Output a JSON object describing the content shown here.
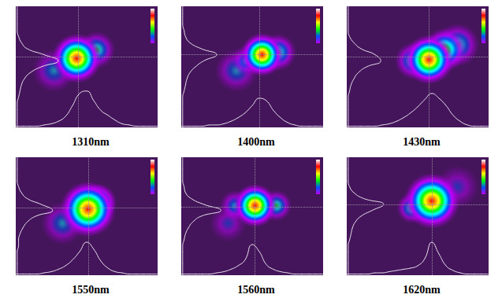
{
  "chart_data": [
    {
      "type": "scatter",
      "title": "1310nm",
      "xlim": [
        0,
        100
      ],
      "ylim": [
        0,
        100
      ],
      "tick_labels": false,
      "crosshair": {
        "x": 44,
        "y": 58
      },
      "spots": [
        {
          "x": 27,
          "y": 47,
          "width": 14,
          "intensity": 0.12
        },
        {
          "x": 57,
          "y": 64,
          "width": 12,
          "intensity": 0.35
        },
        {
          "x": 43,
          "y": 57,
          "width": 16,
          "intensity": 1.0
        }
      ],
      "profile_positions": [
        0,
        5,
        10,
        15,
        20,
        25,
        30,
        35,
        40,
        45,
        50,
        55,
        60,
        65,
        70,
        75,
        80,
        85,
        90,
        95,
        100
      ],
      "x_profile": [
        1,
        1,
        1,
        1,
        2,
        3,
        5,
        9,
        18,
        28,
        30,
        22,
        14,
        10,
        6,
        3,
        2,
        1,
        1,
        1,
        1
      ],
      "y_profile": [
        1,
        1,
        1,
        1,
        1,
        2,
        3,
        4,
        6,
        10,
        18,
        30,
        20,
        8,
        4,
        2,
        1,
        1,
        1,
        1,
        1
      ]
    },
    {
      "type": "scatter",
      "title": "1400nm",
      "xlim": [
        0,
        100
      ],
      "ylim": [
        0,
        100
      ],
      "tick_labels": false,
      "crosshair": {
        "x": 55,
        "y": 60
      },
      "spots": [
        {
          "x": 39,
          "y": 47,
          "width": 14,
          "intensity": 0.12
        },
        {
          "x": 46,
          "y": 55,
          "width": 10,
          "intensity": 0.3
        },
        {
          "x": 68,
          "y": 62,
          "width": 12,
          "intensity": 0.5
        },
        {
          "x": 57,
          "y": 60,
          "width": 14,
          "intensity": 1.0
        }
      ],
      "profile_positions": [
        0,
        5,
        10,
        15,
        20,
        25,
        30,
        35,
        40,
        45,
        50,
        55,
        60,
        65,
        70,
        75,
        80,
        85,
        90,
        95,
        100
      ],
      "x_profile": [
        1,
        1,
        1,
        1,
        2,
        2,
        3,
        5,
        8,
        12,
        18,
        24,
        22,
        14,
        8,
        4,
        2,
        1,
        1,
        1,
        1
      ],
      "y_profile": [
        1,
        1,
        1,
        1,
        1,
        1,
        2,
        3,
        4,
        6,
        10,
        16,
        25,
        14,
        6,
        3,
        2,
        1,
        1,
        1,
        1
      ]
    },
    {
      "type": "scatter",
      "title": "1430nm",
      "xlim": [
        0,
        100
      ],
      "ylim": [
        0,
        100
      ],
      "tick_labels": false,
      "crosshair": {
        "x": 58,
        "y": 58
      },
      "spots": [
        {
          "x": 78,
          "y": 68,
          "width": 14,
          "intensity": 0.35
        },
        {
          "x": 47,
          "y": 55,
          "width": 12,
          "intensity": 0.4
        },
        {
          "x": 69,
          "y": 64,
          "width": 14,
          "intensity": 0.7
        },
        {
          "x": 58,
          "y": 56,
          "width": 16,
          "intensity": 1.0
        }
      ],
      "profile_positions": [
        0,
        5,
        10,
        15,
        20,
        25,
        30,
        35,
        40,
        45,
        50,
        55,
        60,
        65,
        70,
        75,
        80,
        85,
        90,
        95,
        100
      ],
      "x_profile": [
        1,
        1,
        1,
        1,
        1,
        2,
        3,
        5,
        8,
        12,
        17,
        23,
        28,
        24,
        18,
        10,
        5,
        2,
        1,
        1,
        1
      ],
      "y_profile": [
        1,
        1,
        1,
        1,
        1,
        1,
        2,
        3,
        5,
        8,
        14,
        24,
        20,
        10,
        5,
        2,
        1,
        1,
        1,
        1,
        1
      ]
    },
    {
      "type": "scatter",
      "title": "1550nm",
      "xlim": [
        0,
        100
      ],
      "ylim": [
        0,
        100
      ],
      "tick_labels": false,
      "crosshair": {
        "x": 51,
        "y": 57
      },
      "spots": [
        {
          "x": 33,
          "y": 44,
          "width": 14,
          "intensity": 0.12
        },
        {
          "x": 58,
          "y": 62,
          "width": 12,
          "intensity": 0.6
        },
        {
          "x": 51,
          "y": 56,
          "width": 18,
          "intensity": 1.0
        }
      ],
      "profile_positions": [
        0,
        5,
        10,
        15,
        20,
        25,
        30,
        35,
        40,
        45,
        50,
        55,
        60,
        65,
        70,
        75,
        80,
        85,
        90,
        95,
        100
      ],
      "x_profile": [
        1,
        1,
        1,
        1,
        2,
        3,
        5,
        8,
        13,
        20,
        28,
        22,
        12,
        6,
        3,
        2,
        1,
        1,
        1,
        1,
        1
      ],
      "y_profile": [
        1,
        1,
        1,
        1,
        1,
        2,
        2,
        3,
        5,
        8,
        14,
        26,
        18,
        8,
        4,
        2,
        1,
        1,
        1,
        1,
        1
      ]
    },
    {
      "type": "scatter",
      "title": "1560nm",
      "xlim": [
        0,
        100
      ],
      "ylim": [
        0,
        100
      ],
      "tick_labels": false,
      "crosshair": {
        "x": 52,
        "y": 58
      },
      "spots": [
        {
          "x": 33,
          "y": 44,
          "width": 12,
          "intensity": 0.1
        },
        {
          "x": 38,
          "y": 59,
          "width": 10,
          "intensity": 0.3
        },
        {
          "x": 67,
          "y": 59,
          "width": 10,
          "intensity": 0.35
        },
        {
          "x": 52,
          "y": 59,
          "width": 14,
          "intensity": 1.0
        }
      ],
      "profile_positions": [
        0,
        5,
        10,
        15,
        20,
        25,
        30,
        35,
        40,
        45,
        50,
        55,
        60,
        65,
        70,
        75,
        80,
        85,
        90,
        95,
        100
      ],
      "x_profile": [
        1,
        1,
        1,
        1,
        1,
        2,
        3,
        5,
        8,
        13,
        26,
        20,
        9,
        5,
        3,
        2,
        1,
        1,
        1,
        1,
        1
      ],
      "y_profile": [
        1,
        1,
        1,
        1,
        1,
        1,
        2,
        3,
        5,
        8,
        14,
        28,
        16,
        7,
        3,
        2,
        1,
        1,
        1,
        1,
        1
      ]
    },
    {
      "type": "scatter",
      "title": "1620nm",
      "xlim": [
        0,
        100
      ],
      "ylim": [
        0,
        100
      ],
      "tick_labels": false,
      "crosshair": {
        "x": 60,
        "y": 60
      },
      "spots": [
        {
          "x": 78,
          "y": 75,
          "width": 14,
          "intensity": 0.1
        },
        {
          "x": 46,
          "y": 57,
          "width": 10,
          "intensity": 0.35
        },
        {
          "x": 60,
          "y": 63,
          "width": 18,
          "intensity": 1.0
        }
      ],
      "profile_positions": [
        0,
        5,
        10,
        15,
        20,
        25,
        30,
        35,
        40,
        45,
        50,
        55,
        60,
        65,
        70,
        75,
        80,
        85,
        90,
        95,
        100
      ],
      "x_profile": [
        1,
        1,
        1,
        1,
        2,
        2,
        3,
        4,
        5,
        6,
        8,
        14,
        28,
        18,
        8,
        4,
        2,
        1,
        1,
        1,
        1
      ],
      "y_profile": [
        1,
        1,
        1,
        1,
        1,
        1,
        2,
        3,
        4,
        6,
        10,
        18,
        26,
        12,
        5,
        2,
        1,
        1,
        1,
        1,
        1
      ]
    }
  ]
}
